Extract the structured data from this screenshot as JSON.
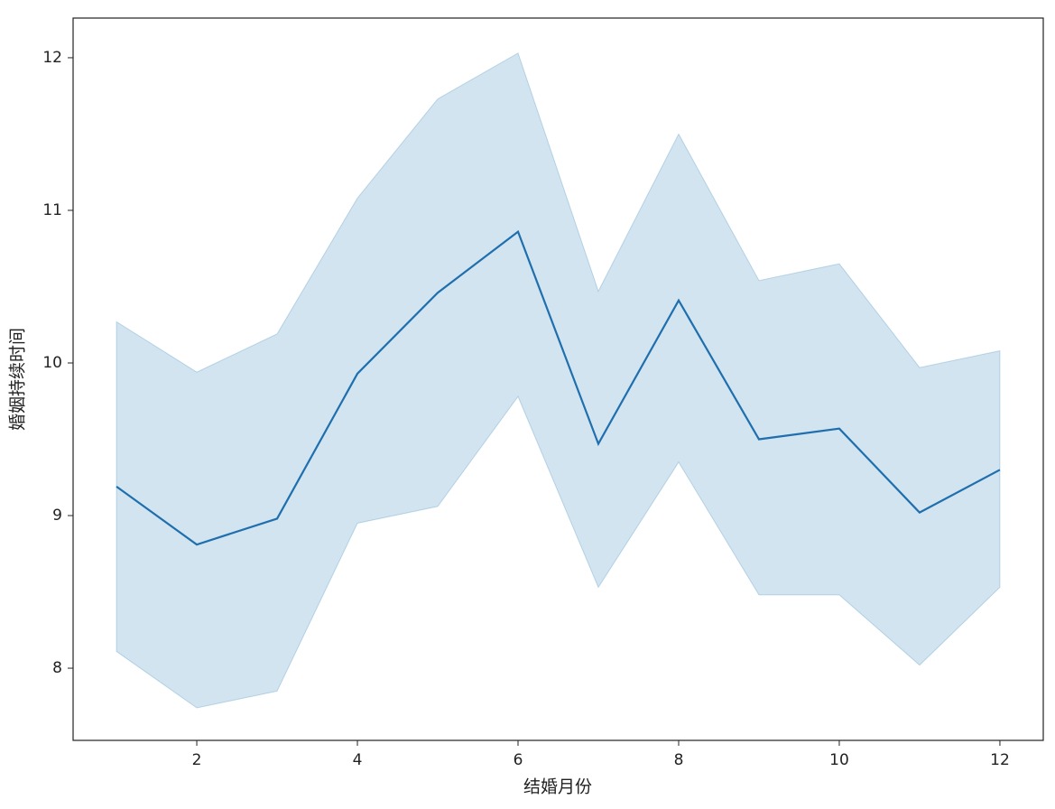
{
  "chart_data": {
    "type": "line",
    "x_label": "结婚月份",
    "y_label": "婚姻持续时间",
    "x": [
      1,
      2,
      3,
      4,
      5,
      6,
      7,
      8,
      9,
      10,
      11,
      12
    ],
    "series": [
      {
        "color": "#1f6fae",
        "band_color": "#1f77b4",
        "values": [
          9.19,
          8.81,
          8.98,
          9.93,
          10.46,
          10.86,
          9.47,
          10.41,
          9.5,
          9.57,
          9.02,
          9.3
        ],
        "lower": [
          8.11,
          7.74,
          7.85,
          8.95,
          9.06,
          9.78,
          8.53,
          9.35,
          8.48,
          8.48,
          8.02,
          8.53
        ],
        "upper": [
          10.27,
          9.94,
          10.19,
          11.08,
          11.73,
          12.03,
          10.47,
          11.5,
          10.54,
          10.65,
          9.97,
          10.08
        ]
      }
    ],
    "xlim": [
      0.46,
      12.54
    ],
    "ylim": [
      7.527,
      12.26
    ],
    "xticks": [
      2,
      4,
      6,
      8,
      10,
      12
    ],
    "yticks": [
      8,
      9,
      10,
      11,
      12
    ]
  }
}
